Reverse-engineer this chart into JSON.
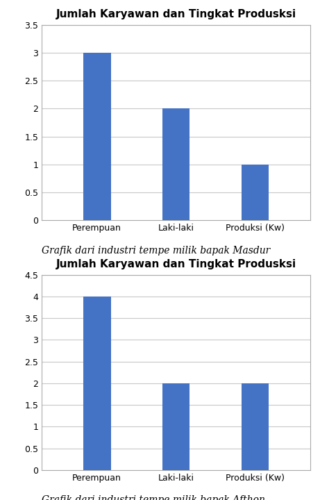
{
  "title": "Jumlah Karyawan dan Tingkat Produsksi",
  "categories": [
    "Perempuan",
    "Laki-laki",
    "Produksi (Kw)"
  ],
  "chart1": {
    "values": [
      3,
      2,
      1
    ],
    "ylim": [
      0,
      3.5
    ],
    "yticks": [
      0,
      0.5,
      1,
      1.5,
      2,
      2.5,
      3,
      3.5
    ],
    "caption": "Grafik dari industri tempe milik bapak Masdur"
  },
  "chart2": {
    "values": [
      4,
      2,
      2
    ],
    "ylim": [
      0,
      4.5
    ],
    "yticks": [
      0,
      0.5,
      1,
      1.5,
      2,
      2.5,
      3,
      3.5,
      4,
      4.5
    ],
    "caption": "Grafik dari industri tempe milik bapak Afthon"
  },
  "bar_color": "#4472C4",
  "bar_width": 0.35,
  "title_fontsize": 11,
  "caption_fontsize": 10,
  "tick_fontsize": 9,
  "background_color": "#ffffff",
  "grid_color": "#c8c8c8",
  "spine_color": "#aaaaaa"
}
